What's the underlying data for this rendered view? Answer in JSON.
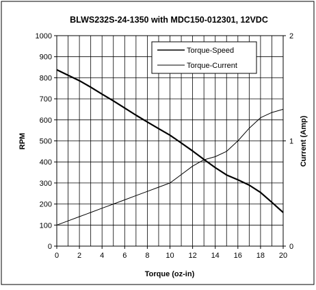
{
  "chart_data": {
    "type": "line",
    "title": "BLWS232S-24-1350 with MDC150-012301, 12VDC",
    "xlabel": "Torque (oz-in)",
    "ylabel": "RPM",
    "y2label": "Current (Amp)",
    "xlim": [
      0,
      20
    ],
    "ylim": [
      0,
      1000
    ],
    "y2lim": [
      0,
      2
    ],
    "x_ticks": [
      "0",
      "2",
      "4",
      "6",
      "8",
      "10",
      "12",
      "14",
      "16",
      "18",
      "20"
    ],
    "y_ticks": [
      "0",
      "100",
      "200",
      "300",
      "400",
      "500",
      "600",
      "700",
      "800",
      "900",
      "1000"
    ],
    "y2_ticks": [
      "0",
      "1",
      "2"
    ],
    "grid": true,
    "legend_position": "top-right",
    "series": [
      {
        "name": "Torque-Speed",
        "axis": "left",
        "line_weight": "bold",
        "x": [
          0,
          1,
          2,
          3,
          4,
          5,
          6,
          7,
          8,
          9,
          10,
          11,
          12,
          13,
          14,
          15,
          16,
          17,
          18,
          19,
          20
        ],
        "values": [
          838,
          812,
          786,
          755,
          722,
          690,
          656,
          622,
          590,
          558,
          527,
          490,
          452,
          412,
          373,
          338,
          315,
          290,
          255,
          208,
          160
        ]
      },
      {
        "name": "Torque-Current",
        "axis": "right",
        "line_weight": "thin",
        "x": [
          0,
          1,
          2,
          3,
          4,
          5,
          6,
          7,
          8,
          9,
          10,
          11,
          12,
          13,
          14,
          15,
          16,
          17,
          18,
          19,
          20
        ],
        "values": [
          0.2,
          0.24,
          0.28,
          0.32,
          0.36,
          0.4,
          0.44,
          0.48,
          0.52,
          0.56,
          0.6,
          0.68,
          0.76,
          0.82,
          0.85,
          0.9,
          1.0,
          1.12,
          1.22,
          1.27,
          1.3
        ]
      }
    ]
  }
}
